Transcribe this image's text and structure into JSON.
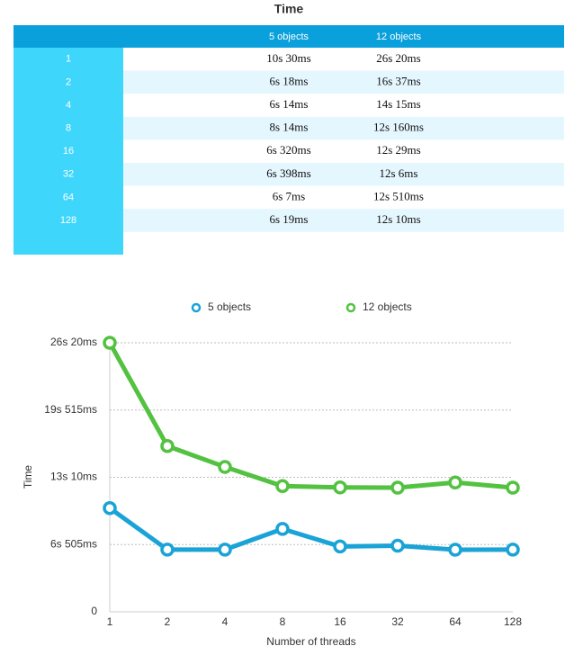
{
  "table": {
    "title": "Time",
    "columns": [
      "5 objects",
      "12 objects"
    ],
    "rows": [
      [
        "1",
        "10s 30ms",
        "26s 20ms"
      ],
      [
        "2",
        "6s 18ms",
        "16s 37ms"
      ],
      [
        "4",
        "6s 14ms",
        "14s 15ms"
      ],
      [
        "8",
        "8s 14ms",
        "12s 160ms"
      ],
      [
        "16",
        "6s 320ms",
        "12s 29ms"
      ],
      [
        "32",
        "6s 398ms",
        "12s 6ms"
      ],
      [
        "64",
        "6s 7ms",
        "12s 510ms"
      ],
      [
        "128",
        "6s 19ms",
        "12s 10ms"
      ]
    ]
  },
  "chart_data": {
    "type": "line",
    "categories": [
      "1",
      "2",
      "4",
      "8",
      "16",
      "32",
      "64",
      "128"
    ],
    "series": [
      {
        "name": "5 objects",
        "color": "#1aa3d6",
        "values": [
          10030,
          6018,
          6014,
          8014,
          6320,
          6398,
          6007,
          6019
        ]
      },
      {
        "name": "12 objects",
        "color": "#52c240",
        "values": [
          26020,
          16037,
          14015,
          12160,
          12029,
          12006,
          12510,
          12010
        ]
      }
    ],
    "ylim": [
      0,
      26020
    ],
    "yticks": [
      0,
      {
        "value": 6505,
        "label": "6s 505ms"
      },
      {
        "value": 13010,
        "label": "13s 10ms"
      },
      {
        "value": 19515,
        "label": "19s 515ms"
      },
      {
        "value": 26020,
        "label": "26s 20ms"
      }
    ],
    "xlabel": "Number of threads",
    "ylabel": "Time",
    "grid": true
  }
}
